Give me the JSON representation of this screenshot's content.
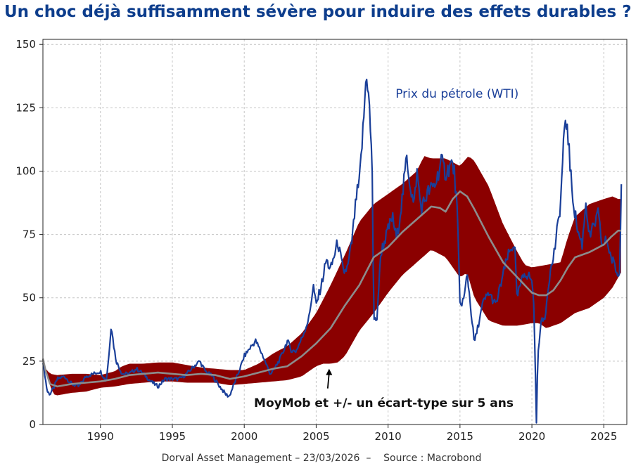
{
  "chart_data": {
    "type": "line",
    "title": "Un choc déjà suffisamment sévère pour induire des effets durables ?",
    "footer": "Dorval Asset Management – 23/03/2026  –    Source : Macrobond",
    "xlabel": "",
    "ylabel": "",
    "xlim": [
      1986,
      2026.6
    ],
    "ylim": [
      0,
      152
    ],
    "grid": true,
    "x_ticks": [
      1990,
      1995,
      2000,
      2005,
      2010,
      2015,
      2020,
      2025
    ],
    "y_ticks": [
      0,
      25,
      50,
      75,
      100,
      125,
      150
    ],
    "annotations": [
      {
        "text": "Prix du pétrole (WTI)",
        "series": "WTI",
        "x": 2014.8,
        "y": 129
      },
      {
        "text": "MoyMob et +/- un écart-type sur 5 ans",
        "series": "MoyMob",
        "arrow_to": [
          2005.9,
          22
        ],
        "x": 2009.7,
        "y": 7
      }
    ],
    "series": [
      {
        "name": "WTI",
        "label": "Prix du pétrole (WTI)",
        "kind": "line",
        "color": "#1a3f99",
        "x": [
          1986.0,
          1986.15,
          1986.3,
          1986.5,
          1986.8,
          1987.0,
          1987.5,
          1988.0,
          1988.5,
          1989.0,
          1989.5,
          1990.0,
          1990.4,
          1990.6,
          1990.75,
          1990.9,
          1991.1,
          1991.5,
          1992.0,
          1992.5,
          1993.0,
          1993.5,
          1994.0,
          1994.5,
          1995.0,
          1995.5,
          1996.0,
          1996.5,
          1996.9,
          1997.3,
          1997.8,
          1998.3,
          1998.7,
          1998.95,
          1999.3,
          1999.7,
          2000.0,
          2000.5,
          2000.8,
          2001.3,
          2001.8,
          2002.0,
          2002.5,
          2003.0,
          2003.3,
          2003.6,
          2004.0,
          2004.5,
          2004.8,
          2005.0,
          2005.4,
          2005.7,
          2006.0,
          2006.5,
          2006.9,
          2007.2,
          2007.5,
          2007.8,
          2008.0,
          2008.3,
          2008.5,
          2008.7,
          2008.9,
          2009.0,
          2009.2,
          2009.5,
          2009.9,
          2010.3,
          2010.6,
          2011.0,
          2011.3,
          2011.5,
          2011.8,
          2012.0,
          2012.3,
          2012.5,
          2012.8,
          2013.0,
          2013.3,
          2013.7,
          2014.0,
          2014.4,
          2014.6,
          2014.8,
          2015.0,
          2015.3,
          2015.5,
          2015.8,
          2016.0,
          2016.3,
          2016.6,
          2017.0,
          2017.5,
          2017.9,
          2018.3,
          2018.8,
          2018.95,
          2019.2,
          2019.5,
          2019.9,
          2020.1,
          2020.25,
          2020.31,
          2020.4,
          2020.6,
          2020.9,
          2021.2,
          2021.5,
          2021.8,
          2022.0,
          2022.2,
          2022.45,
          2022.7,
          2022.9,
          2023.2,
          2023.5,
          2023.75,
          2024.0,
          2024.3,
          2024.6,
          2024.9,
          2025.2,
          2025.5,
          2025.8,
          2026.0,
          2026.1,
          2026.15,
          2026.22
        ],
        "values": [
          25,
          19,
          13,
          12,
          15,
          18,
          19,
          16,
          15,
          19,
          20,
          21,
          17,
          28,
          40,
          32,
          25,
          20,
          20,
          22,
          20,
          17,
          15,
          18,
          18,
          18,
          20,
          23,
          25,
          21,
          19,
          15,
          12,
          11,
          16,
          22,
          27,
          31,
          33,
          27,
          20,
          21,
          26,
          33,
          29,
          29,
          34,
          42,
          55,
          47,
          56,
          65,
          61,
          72,
          60,
          62,
          73,
          90,
          95,
          120,
          140,
          125,
          100,
          42,
          40,
          68,
          75,
          82,
          73,
          90,
          106,
          96,
          86,
          100,
          85,
          88,
          92,
          93,
          95,
          104,
          99,
          103,
          100,
          85,
          47,
          50,
          60,
          43,
          32,
          40,
          48,
          52,
          47,
          57,
          66,
          72,
          50,
          55,
          60,
          58,
          53,
          20,
          -2,
          25,
          40,
          42,
          58,
          66,
          78,
          88,
          112,
          120,
          98,
          87,
          76,
          71,
          88,
          74,
          78,
          83,
          70,
          73,
          66,
          62,
          58,
          60,
          76,
          98
        ]
      },
      {
        "name": "MoyMob",
        "label": "MoyMob et +/- un écart-type sur 5 ans",
        "kind": "line",
        "color": "#8c8c8c",
        "x": [
          1986.0,
          1986.2,
          1986.5,
          1987.0,
          1988.0,
          1989.0,
          1990.0,
          1991.0,
          1992.0,
          1993.0,
          1994.0,
          1995.0,
          1996.0,
          1997.0,
          1998.0,
          1999.0,
          2000.0,
          2001.0,
          2002.0,
          2003.0,
          2004.0,
          2005.0,
          2006.0,
          2007.0,
          2008.0,
          2009.0,
          2010.0,
          2011.0,
          2012.0,
          2013.0,
          2013.6,
          2014.0,
          2014.5,
          2015.0,
          2015.5,
          2016.0,
          2017.0,
          2018.0,
          2019.0,
          2020.0,
          2020.5,
          2021.0,
          2021.5,
          2022.0,
          2022.5,
          2023.0,
          2024.0,
          2025.0,
          2025.5,
          2026.0,
          2026.2
        ],
        "values": [
          26,
          21,
          16,
          15,
          16,
          16.5,
          17,
          18,
          19.5,
          20,
          20.5,
          20,
          19.5,
          20,
          19.5,
          18,
          19,
          20.5,
          22,
          23,
          27,
          32,
          38,
          47,
          55,
          66,
          70,
          76,
          81,
          86,
          85.5,
          84,
          89,
          92,
          90,
          85,
          74,
          64,
          58,
          52,
          51,
          51,
          53,
          57,
          62,
          66,
          68,
          71,
          74,
          76.5,
          76.5
        ]
      },
      {
        "name": "MoyMob + 1 écart-type",
        "kind": "band-upper",
        "color": "#8b0000",
        "x": [
          1986.0,
          1986.2,
          1986.5,
          1987.0,
          1988.0,
          1989.0,
          1990.0,
          1991.0,
          1991.5,
          1992.0,
          1993.0,
          1994.0,
          1995.0,
          1996.0,
          1997.0,
          1998.0,
          1999.0,
          2000.0,
          2001.0,
          2002.0,
          2003.0,
          2004.0,
          2005.0,
          2006.0,
          2007.0,
          2008.0,
          2009.0,
          2010.0,
          2011.0,
          2012.0,
          2012.5,
          2013.0,
          2014.0,
          2015.0,
          2015.6,
          2016.0,
          2017.0,
          2018.0,
          2019.0,
          2019.5,
          2020.0,
          2021.0,
          2022.0,
          2022.5,
          2023.0,
          2024.0,
          2025.0,
          2025.6,
          2026.0,
          2026.2
        ],
        "values": [
          26,
          22,
          20,
          19.5,
          20,
          20,
          19.5,
          21,
          23,
          24,
          24,
          24.5,
          24.5,
          23.5,
          22.5,
          22,
          21.5,
          21.5,
          24,
          28,
          31,
          36,
          44,
          55,
          67,
          80,
          87,
          91,
          95,
          100,
          106,
          105,
          105,
          102,
          106,
          104,
          94,
          79,
          68,
          63,
          62,
          63,
          64,
          74,
          82,
          87,
          89,
          90,
          89,
          89
        ]
      },
      {
        "name": "MoyMob - 1 écart-type",
        "kind": "band-lower",
        "color": "#8b0000",
        "x": [
          1986.0,
          1986.3,
          1986.7,
          1987.0,
          1988.0,
          1989.0,
          1990.0,
          1991.0,
          1992.0,
          1993.0,
          1994.0,
          1995.0,
          1996.0,
          1997.0,
          1998.0,
          1999.0,
          2000.0,
          2001.0,
          2002.0,
          2003.0,
          2004.0,
          2005.0,
          2005.5,
          2006.0,
          2006.5,
          2007.0,
          2008.0,
          2009.0,
          2010.0,
          2011.0,
          2012.0,
          2013.0,
          2014.0,
          2015.0,
          2015.5,
          2016.0,
          2017.0,
          2018.0,
          2019.0,
          2020.0,
          2020.5,
          2021.0,
          2022.0,
          2023.0,
          2024.0,
          2025.0,
          2025.6,
          2026.0,
          2026.2
        ],
        "values": [
          26,
          19,
          12,
          11.5,
          12.5,
          13,
          14.5,
          15,
          16,
          16.5,
          17,
          17,
          16.5,
          16.5,
          16.5,
          15.5,
          16,
          16.5,
          17,
          17.5,
          19,
          23,
          24,
          24,
          24.5,
          27,
          37,
          44,
          52,
          59,
          64,
          69,
          66,
          58,
          60,
          50,
          41,
          39,
          39,
          40,
          40,
          38,
          40,
          44,
          46,
          50,
          54,
          58,
          60
        ]
      }
    ]
  }
}
